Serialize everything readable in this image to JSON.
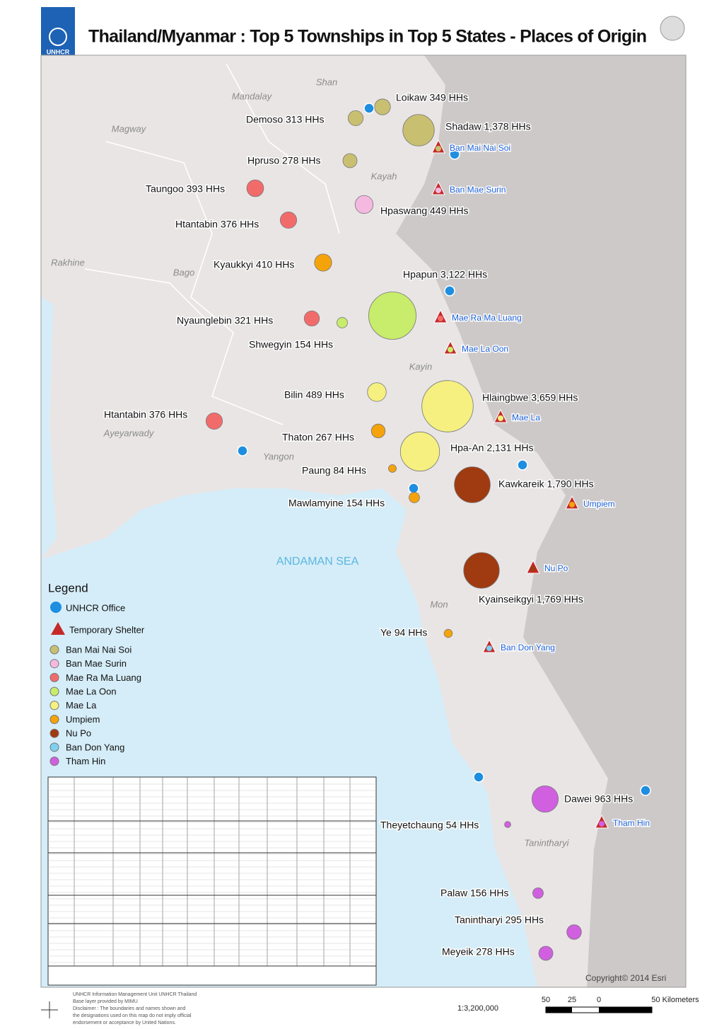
{
  "header": {
    "title": "Thailand/Myanmar : Top 5 Townships in Top 5 States - Places of Origin",
    "logo": "UNHCR"
  },
  "regions": [
    "Shan",
    "Mandalay",
    "Magway",
    "Kayah",
    "Rakhine",
    "Bago",
    "Kayin",
    "Ayeyarwady",
    "Yangon",
    "ANDAMAN SEA",
    "Mon",
    "Tanintharyi"
  ],
  "townships": [
    {
      "label": "Loikaw 349 HHs",
      "hh": 349,
      "color": "#c8c070"
    },
    {
      "label": "Demoso 313 HHs",
      "hh": 313,
      "color": "#c8c070"
    },
    {
      "label": "Shadaw 1,378 HHs",
      "hh": 1378,
      "color": "#c8c070"
    },
    {
      "label": "Hpruso 278 HHs",
      "hh": 278,
      "color": "#c8c070"
    },
    {
      "label": "Taungoo 393 HHs",
      "hh": 393,
      "color": "#f26b6b"
    },
    {
      "label": "Hpaswang 449 HHs",
      "hh": 449,
      "color": "#f5b8e0"
    },
    {
      "label": "Htantabin 376 HHs",
      "hh": 376,
      "color": "#f26b6b"
    },
    {
      "label": "Kyaukkyi 410 HHs",
      "hh": 410,
      "color": "#f5a30a"
    },
    {
      "label": "Hpapun 3,122 HHs",
      "hh": 3122,
      "color": "#c8ec6c"
    },
    {
      "label": "Nyaunglebin 321 HHs",
      "hh": 321,
      "color": "#f26b6b"
    },
    {
      "label": "Shwegyin 154 HHs",
      "hh": 154,
      "color": "#c8ec6c"
    },
    {
      "label": "Bilin 489 HHs",
      "hh": 489,
      "color": "#f5f080"
    },
    {
      "label": "Hlaingbwe 3,659 HHs",
      "hh": 3659,
      "color": "#f5f080"
    },
    {
      "label": "Htantabin 376 HHs",
      "hh": 376,
      "color": "#f26b6b"
    },
    {
      "label": "Thaton 267 HHs",
      "hh": 267,
      "color": "#f5a30a"
    },
    {
      "label": "Hpa-An 2,131 HHs",
      "hh": 2131,
      "color": "#f5f080"
    },
    {
      "label": "Paung 84 HHs",
      "hh": 84,
      "color": "#f5a30a"
    },
    {
      "label": "Kawkareik 1,790 HHs",
      "hh": 1790,
      "color": "#a03a10"
    },
    {
      "label": "Mawlamyine 154 HHs",
      "hh": 154,
      "color": "#f5a30a"
    },
    {
      "label": "Kyainseikgyi 1,769 HHs",
      "hh": 1769,
      "color": "#a03a10"
    },
    {
      "label": "Ye 94 HHs",
      "hh": 94,
      "color": "#f5a30a"
    },
    {
      "label": "Dawei 963 HHs",
      "hh": 963,
      "color": "#d060e0"
    },
    {
      "label": "Theyetchaung 54 HHs",
      "hh": 54,
      "color": "#d060e0"
    },
    {
      "label": "Palaw 156 HHs",
      "hh": 156,
      "color": "#d060e0"
    },
    {
      "label": "Tanintharyi 295 HHs",
      "hh": 295,
      "color": "#d060e0"
    },
    {
      "label": "Meyeik 278 HHs",
      "hh": 278,
      "color": "#d060e0"
    }
  ],
  "camps": [
    "Ban Mai Nai Soi",
    "Ban Mae Surin",
    "Mae Ra Ma Luang",
    "Mae La Oon",
    "Mae La",
    "Umpiem",
    "Nu Po",
    "Ban Don Yang",
    "Tham Hin"
  ],
  "legend": {
    "title": "Legend",
    "office": "UNHCR Office",
    "shelter": "Temporary Shelter",
    "items": [
      {
        "label": "Ban Mai Nai Soi",
        "color": "#c8c070"
      },
      {
        "label": "Ban Mae Surin",
        "color": "#f5b8e0"
      },
      {
        "label": "Mae Ra Ma Luang",
        "color": "#f26b6b"
      },
      {
        "label": "Mae La Oon",
        "color": "#c8ec6c"
      },
      {
        "label": "Mae La",
        "color": "#f5f080"
      },
      {
        "label": "Umpiem",
        "color": "#f5a30a"
      },
      {
        "label": "Nu Po",
        "color": "#a03a10"
      },
      {
        "label": "Ban Don Yang",
        "color": "#7fd0f0"
      },
      {
        "label": "Tham Hin",
        "color": "#d060e0"
      }
    ]
  },
  "footer": {
    "credits": [
      "UNHCR Information Management Unit UNHCR Thailand",
      "Base layer provided by MIMU",
      "Disclaimer : The boundaries and names shown and",
      "the designations used on this map do not imply official",
      "endorsement or acceptance by United Nations."
    ],
    "copyright": "Copyright© 2014 Esri",
    "scale": "1:3,200,000",
    "scale_labels": [
      "50",
      "25",
      "0",
      "50 Kilometers"
    ]
  }
}
